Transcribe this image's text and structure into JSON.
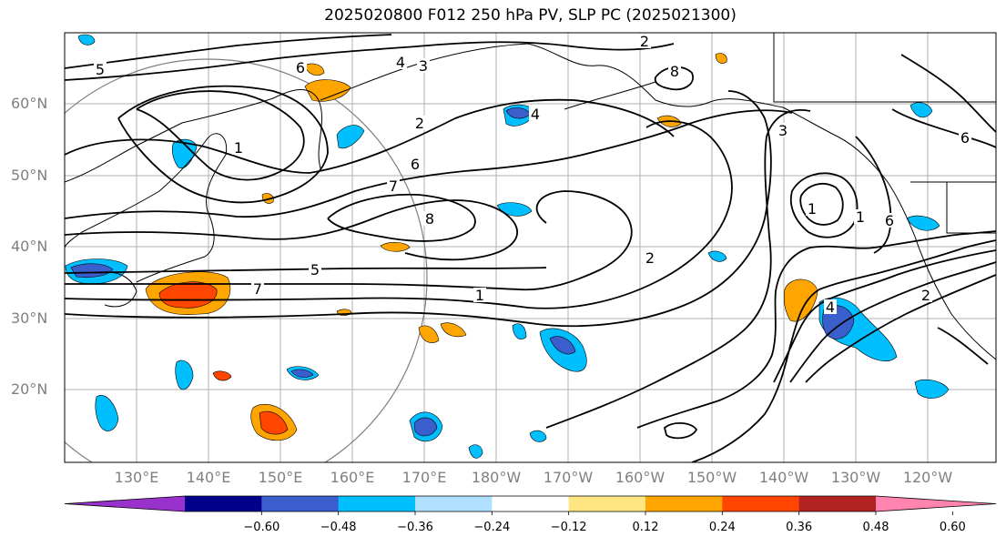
{
  "title": "2025020800 F012 250 hPa PV, SLP PC (2025021300)",
  "lat_labels": [
    "60°N",
    "50°N",
    "40°N",
    "30°N",
    "20°N"
  ],
  "lon_labels": [
    "130°E",
    "140°E",
    "150°E",
    "160°E",
    "170°E",
    "180°W",
    "170°W",
    "160°W",
    "150°W",
    "140°W",
    "130°W",
    "120°W"
  ],
  "colorbar": {
    "tick_labels": [
      "−0.60",
      "−0.48",
      "−0.36",
      "−0.24",
      "−0.12",
      "0.12",
      "0.24",
      "0.36",
      "0.48",
      "0.60"
    ],
    "colors": [
      "#9932cc",
      "#00008b",
      "#3a5fcd",
      "#00bfff",
      "#b0e0ff",
      "#ffffff",
      "#ffe680",
      "#ffa500",
      "#ff4500",
      "#b22222",
      "#ff85b0"
    ]
  },
  "contour_labels": [
    "2",
    "5",
    "6",
    "4",
    "3",
    "1",
    "2",
    "6",
    "7",
    "8",
    "5",
    "7",
    "1",
    "2",
    "3",
    "1",
    "1",
    "6",
    "8",
    "4",
    "2",
    "4",
    "6"
  ],
  "contour_color": "#000000",
  "grid_color": "#b0b0b0"
}
